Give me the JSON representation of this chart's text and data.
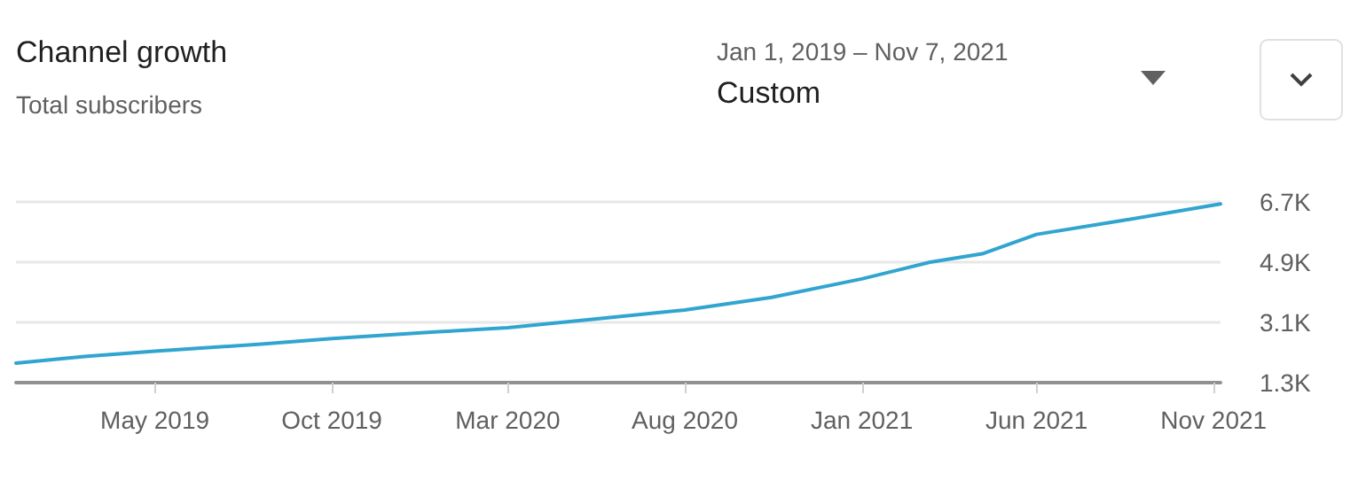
{
  "chart_data": {
    "type": "line",
    "title": "Channel growth",
    "subtitle": "Total subscribers",
    "annotations": [
      "Jan 1, 2019 – Nov 7, 2021",
      "Custom"
    ],
    "x": [
      "2019-01-01",
      "2019-03-01",
      "2019-05-01",
      "2019-08-01",
      "2019-10-01",
      "2020-01-01",
      "2020-03-01",
      "2020-05-15",
      "2020-08-01",
      "2020-10-15",
      "2021-01-01",
      "2021-03-01",
      "2021-04-15",
      "2021-06-01",
      "2021-08-15",
      "2021-11-07"
    ],
    "series": [
      {
        "color": "#31a5d0",
        "values": [
          1880,
          2080,
          2240,
          2450,
          2620,
          2820,
          2940,
          3200,
          3470,
          3850,
          4400,
          4900,
          5150,
          5730,
          6150,
          6640
        ]
      }
    ],
    "xlim": [
      "2019-01-01",
      "2021-11-07"
    ],
    "xticks": [
      {
        "value": "2019-05-01",
        "label": "May 2019"
      },
      {
        "value": "2019-10-01",
        "label": "Oct 2019"
      },
      {
        "value": "2020-03-01",
        "label": "Mar 2020"
      },
      {
        "value": "2020-08-01",
        "label": "Aug 2020"
      },
      {
        "value": "2021-01-01",
        "label": "Jan 2021"
      },
      {
        "value": "2021-06-01",
        "label": "Jun 2021"
      },
      {
        "value": "2021-11-01",
        "label": "Nov 2021"
      }
    ],
    "ylim": [
      1300,
      6700
    ],
    "yticks": [
      {
        "value": 1300,
        "label": "1.3K"
      },
      {
        "value": 3100,
        "label": "3.1K"
      },
      {
        "value": 4900,
        "label": "4.9K"
      },
      {
        "value": 6700,
        "label": "6.7K"
      }
    ],
    "grid": "y",
    "marker": "none",
    "line_style": "solid"
  }
}
